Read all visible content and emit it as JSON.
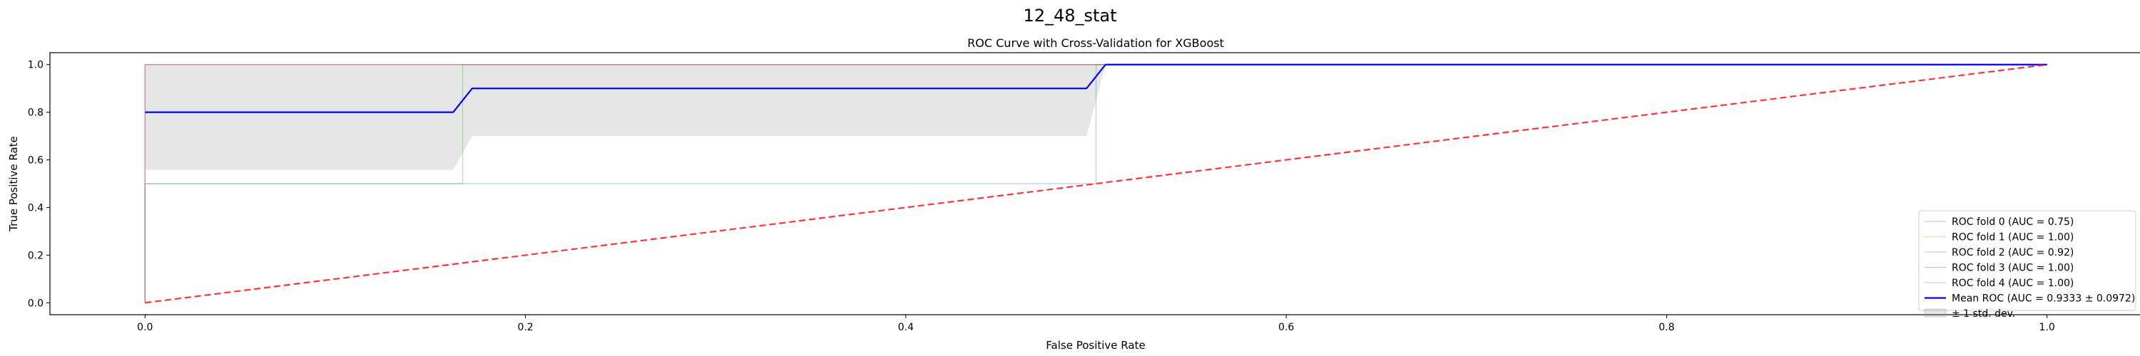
{
  "figure_title": "12_48_stat",
  "chart_data": {
    "type": "line",
    "title": "ROC Curve with Cross-Validation for XGBoost",
    "xlabel": "False Positive Rate",
    "ylabel": "True Positive Rate",
    "xlim": [
      -0.05,
      1.05
    ],
    "ylim": [
      -0.05,
      1.05
    ],
    "xticks": [
      0.0,
      0.2,
      0.4,
      0.6,
      0.8,
      1.0
    ],
    "yticks": [
      0.0,
      0.2,
      0.4,
      0.6,
      0.8,
      1.0
    ],
    "xtick_labels": [
      "0.0",
      "0.2",
      "0.4",
      "0.6",
      "0.8",
      "1.0"
    ],
    "ytick_labels": [
      "0.0",
      "0.2",
      "0.4",
      "0.6",
      "0.8",
      "1.0"
    ],
    "grid": false,
    "legend_position": "lower right",
    "series": [
      {
        "name": "ROC fold 0 (AUC = 0.75)",
        "color": "#1f77b4",
        "x": [
          0,
          0,
          0.5,
          0.5,
          1.0
        ],
        "y": [
          0,
          0.5,
          0.5,
          1.0,
          1.0
        ]
      },
      {
        "name": "ROC fold 1 (AUC = 1.00)",
        "color": "#ff7f0e",
        "x": [
          0,
          0,
          1.0
        ],
        "y": [
          0,
          1.0,
          1.0
        ]
      },
      {
        "name": "ROC fold 2 (AUC = 0.92)",
        "color": "#2ca02c",
        "x": [
          0,
          0,
          0.167,
          0.167,
          1.0
        ],
        "y": [
          0,
          0.5,
          0.5,
          1.0,
          1.0
        ]
      },
      {
        "name": "ROC fold 3 (AUC = 1.00)",
        "color": "#d62728",
        "x": [
          0,
          0,
          1.0
        ],
        "y": [
          0,
          1.0,
          1.0
        ]
      },
      {
        "name": "ROC fold 4 (AUC = 1.00)",
        "color": "#9467bd",
        "x": [
          0,
          0,
          1.0
        ],
        "y": [
          0,
          1.0,
          1.0
        ]
      },
      {
        "name": "Mean ROC (AUC = 0.9333 ± 0.0972)",
        "color": "#0000ff",
        "x": [
          0,
          0.162,
          0.172,
          0.495,
          0.505,
          1.0
        ],
        "y": [
          0.8,
          0.8,
          0.9,
          0.9,
          1.0,
          1.0
        ]
      }
    ],
    "std_band": {
      "name": "± 1 std. dev.",
      "color": "#808080",
      "x": [
        0,
        0.162,
        0.172,
        0.495,
        0.505,
        1.0
      ],
      "upper": [
        1.0,
        1.0,
        1.0,
        1.0,
        1.0,
        1.0
      ],
      "lower": [
        0.558,
        0.558,
        0.7,
        0.7,
        1.0,
        1.0
      ]
    },
    "chance_line": {
      "color": "#ff0000",
      "x": [
        0,
        1
      ],
      "y": [
        0,
        1
      ]
    }
  }
}
